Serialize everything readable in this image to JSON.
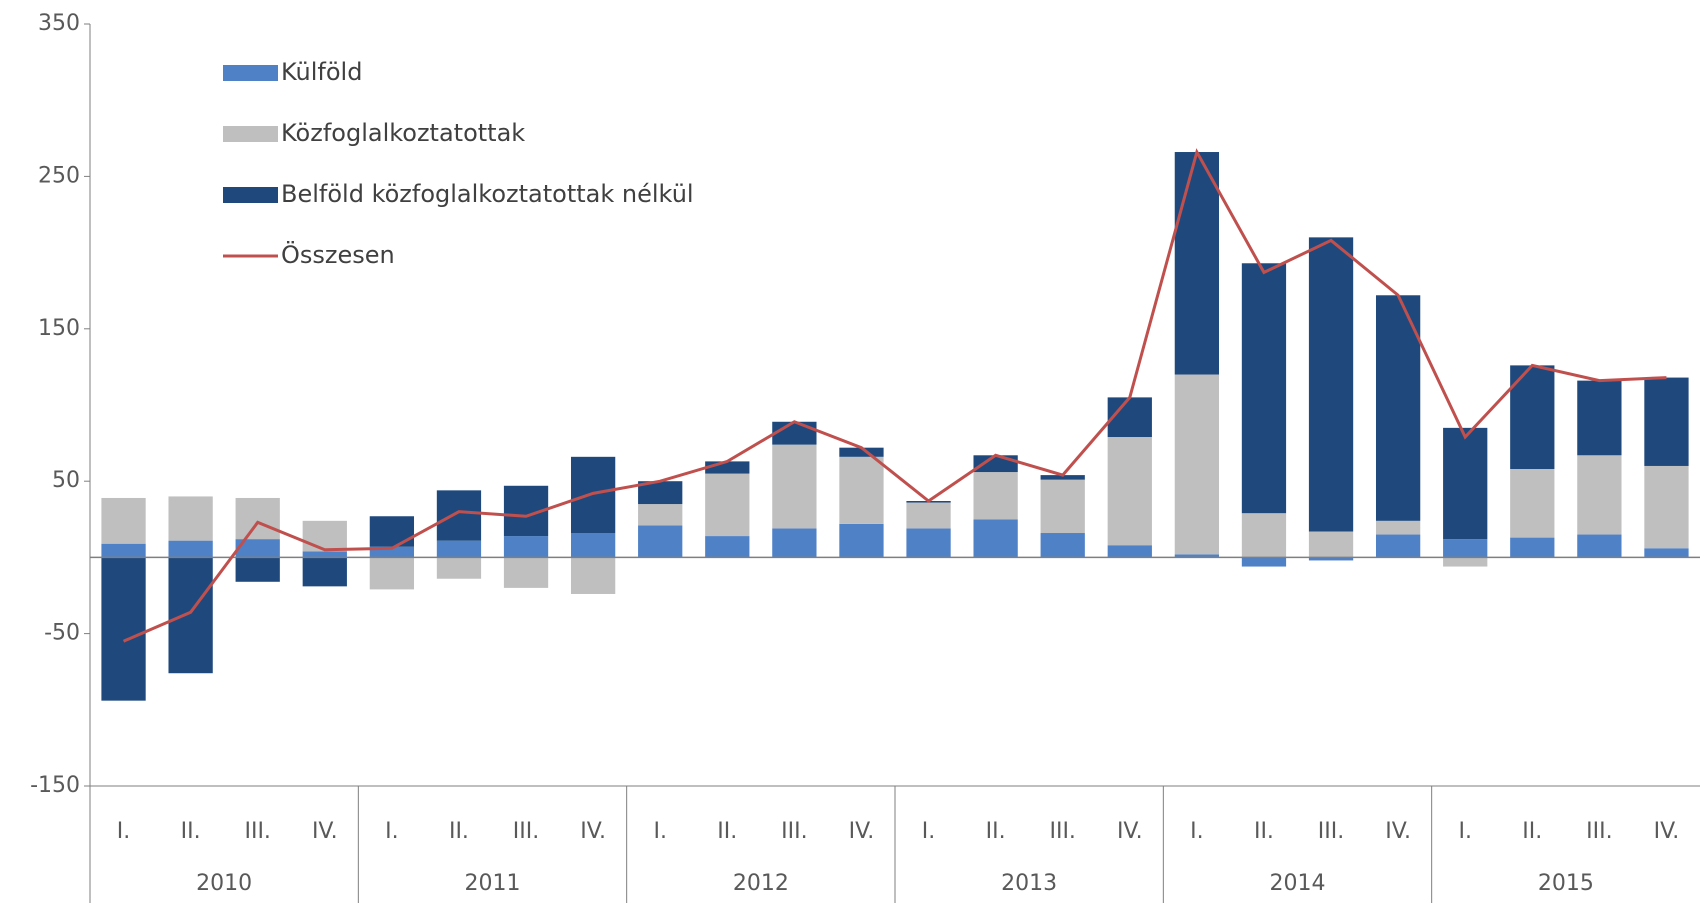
{
  "chart_data": {
    "type": "bar",
    "stacked": true,
    "categories": [
      "I.",
      "II.",
      "III.",
      "IV.",
      "I.",
      "II.",
      "III.",
      "IV.",
      "I.",
      "II.",
      "III.",
      "IV.",
      "I.",
      "II.",
      "III.",
      "IV.",
      "I.",
      "II.",
      "III.",
      "IV.",
      "I.",
      "II.",
      "III.",
      "IV."
    ],
    "groups": [
      "2010",
      "2011",
      "2012",
      "2013",
      "2014",
      "2015"
    ],
    "series": [
      {
        "name": "Külföld",
        "color": "#4f81c7",
        "values": [
          9,
          11,
          12,
          4,
          7,
          11,
          14,
          16,
          21,
          14,
          19,
          22,
          19,
          25,
          16,
          8,
          2,
          -6,
          -2,
          15,
          12,
          13,
          15,
          6
        ]
      },
      {
        "name": "Közfoglalkoztatottak",
        "color": "#bfbfbf",
        "values": [
          30,
          29,
          27,
          20,
          -21,
          -14,
          -20,
          -24,
          14,
          41,
          55,
          44,
          17,
          31,
          35,
          71,
          118,
          29,
          17,
          9,
          -6,
          45,
          52,
          54
        ]
      },
      {
        "name": "Belföld közfoglalkoztatottak nélkül",
        "color": "#1f497d",
        "values": [
          -94,
          -76,
          -16,
          -19,
          20,
          33,
          33,
          50,
          15,
          8,
          15,
          6,
          1,
          11,
          3,
          26,
          146,
          164,
          193,
          148,
          73,
          68,
          49,
          58
        ]
      },
      {
        "name": "Összesen",
        "color": "#c0504d",
        "type": "line",
        "values": [
          -55,
          -36,
          23,
          5,
          6,
          30,
          27,
          42,
          50,
          63,
          89,
          72,
          37,
          67,
          54,
          105,
          266,
          187,
          208,
          172,
          79,
          126,
          116,
          118
        ]
      }
    ],
    "ylim": [
      -150,
      350
    ],
    "yticks": [
      350,
      250,
      150,
      50,
      -50,
      -150
    ],
    "grid": false,
    "legend": "top-left"
  }
}
